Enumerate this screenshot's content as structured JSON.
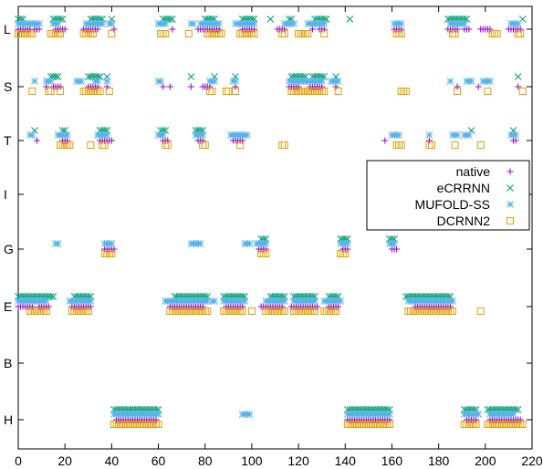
{
  "chart_data": {
    "type": "scatter",
    "title": "",
    "xlabel": "",
    "ylabel": "",
    "xlim": [
      0,
      220
    ],
    "x_ticks": [
      0,
      20,
      40,
      60,
      80,
      100,
      120,
      140,
      160,
      180,
      200,
      220
    ],
    "y_categories": [
      "L",
      "S",
      "T",
      "I",
      "G",
      "E",
      "B",
      "H"
    ],
    "grid": false,
    "legend_position": "right",
    "series": [
      {
        "name": "native",
        "marker": "plus",
        "color": "#9400d3",
        "segments": [
          {
            "y": "L",
            "ranges": [
              [
                0,
                5
              ],
              [
                7,
                9
              ],
              [
                16,
                20
              ],
              [
                28,
                34
              ],
              [
                41,
                41
              ],
              [
                66,
                66
              ],
              [
                77,
                86
              ],
              [
                96,
                101
              ],
              [
                111,
                114
              ],
              [
                126,
                126
              ],
              [
                129,
                131
              ],
              [
                161,
                164
              ],
              [
                184,
                188
              ],
              [
                191,
                193
              ],
              [
                198,
                202
              ],
              [
                210,
                215
              ]
            ]
          },
          {
            "y": "S",
            "ranges": [
              [
                12,
                12
              ],
              [
                15,
                18
              ],
              [
                30,
                34
              ],
              [
                38,
                38
              ],
              [
                62,
                62
              ],
              [
                65,
                65
              ],
              [
                74,
                74
              ],
              [
                79,
                82
              ],
              [
                93,
                93
              ],
              [
                116,
                120
              ],
              [
                125,
                130
              ],
              [
                136,
                136
              ],
              [
                188,
                188
              ],
              [
                197,
                197
              ],
              [
                214,
                214
              ]
            ]
          },
          {
            "y": "T",
            "ranges": [
              [
                8,
                8
              ],
              [
                19,
                21
              ],
              [
                35,
                40
              ],
              [
                62,
                64
              ],
              [
                77,
                79
              ],
              [
                92,
                96
              ],
              [
                157,
                157
              ],
              [
                176,
                176
              ],
              [
                212,
                213
              ]
            ]
          },
          {
            "y": "G",
            "ranges": [
              [
                37,
                41
              ],
              [
                103,
                106
              ],
              [
                139,
                141
              ],
              [
                160,
                162
              ]
            ]
          },
          {
            "y": "E",
            "ranges": [
              [
                0,
                6
              ],
              [
                9,
                13
              ],
              [
                23,
                31
              ],
              [
                65,
                79
              ],
              [
                89,
                96
              ],
              [
                104,
                113
              ],
              [
                117,
                128
              ],
              [
                133,
                137
              ],
              [
                170,
                185
              ]
            ]
          },
          {
            "y": "H",
            "ranges": [
              [
                42,
                59
              ],
              [
                141,
                159
              ],
              [
                192,
                196
              ],
              [
                202,
                215
              ]
            ]
          }
        ]
      },
      {
        "name": "eCRRNN",
        "marker": "cross",
        "color": "#009e73",
        "segments": [
          {
            "y": "L",
            "ranges": [
              [
                0,
                2
              ],
              [
                15,
                19
              ],
              [
                31,
                36
              ],
              [
                40,
                40
              ],
              [
                62,
                66
              ],
              [
                80,
                84
              ],
              [
                96,
                101
              ],
              [
                108,
                108
              ],
              [
                116,
                117
              ],
              [
                127,
                132
              ],
              [
                142,
                142
              ],
              [
                184,
                192
              ],
              [
                216,
                216
              ]
            ]
          },
          {
            "y": "S",
            "ranges": [
              [
                14,
                17
              ],
              [
                30,
                35
              ],
              [
                38,
                38
              ],
              [
                74,
                74
              ],
              [
                84,
                84
              ],
              [
                93,
                93
              ],
              [
                117,
                123
              ],
              [
                126,
                131
              ],
              [
                136,
                136
              ],
              [
                214,
                214
              ]
            ]
          },
          {
            "y": "T",
            "ranges": [
              [
                7,
                7
              ],
              [
                19,
                20
              ],
              [
                35,
                38
              ],
              [
                61,
                63
              ],
              [
                76,
                79
              ],
              [
                194,
                194
              ],
              [
                212,
                212
              ]
            ]
          },
          {
            "y": "G",
            "ranges": [
              [
                104,
                106
              ],
              [
                138,
                141
              ],
              [
                159,
                161
              ]
            ]
          },
          {
            "y": "E",
            "ranges": [
              [
                0,
                15
              ],
              [
                24,
                31
              ],
              [
                67,
                81
              ],
              [
                88,
                97
              ],
              [
                108,
                114
              ],
              [
                118,
                127
              ],
              [
                133,
                137
              ],
              [
                166,
                185
              ]
            ]
          },
          {
            "y": "H",
            "ranges": [
              [
                41,
                60
              ],
              [
                141,
                159
              ],
              [
                191,
                196
              ],
              [
                201,
                214
              ]
            ]
          }
        ]
      },
      {
        "name": "MUFOLD-SS",
        "marker": "star",
        "color": "#56b4e9",
        "segments": [
          {
            "y": "L",
            "ranges": [
              [
                0,
                6
              ],
              [
                7,
                9
              ],
              [
                15,
                17
              ],
              [
                29,
                36
              ],
              [
                39,
                40
              ],
              [
                60,
                63
              ],
              [
                74,
                75
              ],
              [
                78,
                86
              ],
              [
                93,
                101
              ],
              [
                114,
                118
              ],
              [
                124,
                131
              ],
              [
                161,
                164
              ],
              [
                185,
                191
              ],
              [
                211,
                214
              ]
            ]
          },
          {
            "y": "S",
            "ranges": [
              [
                7,
                7
              ],
              [
                12,
                14
              ],
              [
                25,
                27
              ],
              [
                33,
                34
              ],
              [
                38,
                38
              ],
              [
                60,
                61
              ],
              [
                82,
                84
              ],
              [
                92,
                93
              ],
              [
                116,
                122
              ],
              [
                123,
                130
              ],
              [
                134,
                137
              ],
              [
                185,
                185
              ],
              [
                192,
                194
              ],
              [
                199,
                202
              ]
            ]
          },
          {
            "y": "T",
            "ranges": [
              [
                5,
                6
              ],
              [
                17,
                21
              ],
              [
                34,
                38
              ],
              [
                60,
                62
              ],
              [
                76,
                79
              ],
              [
                91,
                98
              ],
              [
                160,
                163
              ],
              [
                176,
                176
              ],
              [
                186,
                188
              ],
              [
                191,
                193
              ],
              [
                211,
                213
              ]
            ]
          },
          {
            "y": "G",
            "ranges": [
              [
                16,
                17
              ],
              [
                37,
                40
              ],
              [
                74,
                78
              ],
              [
                97,
                99
              ],
              [
                102,
                106
              ],
              [
                138,
                141
              ],
              [
                159,
                161
              ]
            ]
          },
          {
            "y": "E",
            "ranges": [
              [
                0,
                12
              ],
              [
                22,
                31
              ],
              [
                63,
                81
              ],
              [
                83,
                84
              ],
              [
                88,
                97
              ],
              [
                106,
                114
              ],
              [
                118,
                127
              ],
              [
                131,
                138
              ],
              [
                167,
                186
              ]
            ]
          },
          {
            "y": "H",
            "ranges": [
              [
                41,
                60
              ],
              [
                96,
                99
              ],
              [
                141,
                159
              ],
              [
                191,
                197
              ],
              [
                202,
                212
              ]
            ]
          }
        ]
      },
      {
        "name": "DCRNN2",
        "marker": "square",
        "color": "#e69f00",
        "segments": [
          {
            "y": "L",
            "ranges": [
              [
                0,
                6
              ],
              [
                14,
                18
              ],
              [
                28,
                32
              ],
              [
                40,
                40
              ],
              [
                61,
                63
              ],
              [
                73,
                73
              ],
              [
                81,
                87
              ],
              [
                95,
                101
              ],
              [
                113,
                114
              ],
              [
                120,
                124
              ],
              [
                131,
                131
              ],
              [
                162,
                164
              ],
              [
                186,
                187
              ],
              [
                203,
                205
              ],
              [
                214,
                215
              ]
            ]
          },
          {
            "y": "S",
            "ranges": [
              [
                6,
                6
              ],
              [
                13,
                14
              ],
              [
                18,
                18
              ],
              [
                28,
                35
              ],
              [
                39,
                39
              ],
              [
                82,
                83
              ],
              [
                89,
                90
              ],
              [
                93,
                93
              ],
              [
                117,
                131
              ],
              [
                137,
                137
              ],
              [
                164,
                166
              ],
              [
                188,
                188
              ],
              [
                201,
                201
              ],
              [
                216,
                216
              ]
            ]
          },
          {
            "y": "T",
            "ranges": [
              [
                18,
                22
              ],
              [
                31,
                31
              ],
              [
                36,
                37
              ],
              [
                63,
                64
              ],
              [
                79,
                80
              ],
              [
                95,
                95
              ],
              [
                113,
                114
              ],
              [
                162,
                164
              ],
              [
                176,
                177
              ],
              [
                187,
                187
              ],
              [
                198,
                198
              ]
            ]
          },
          {
            "y": "G",
            "ranges": [
              [
                37,
                40
              ],
              [
                104,
                106
              ],
              [
                138,
                140
              ]
            ]
          },
          {
            "y": "E",
            "ranges": [
              [
                5,
                12
              ],
              [
                23,
                30
              ],
              [
                65,
                81
              ],
              [
                88,
                96
              ],
              [
                100,
                100
              ],
              [
                106,
                114
              ],
              [
                118,
                127
              ],
              [
                131,
                136
              ],
              [
                167,
                186
              ],
              [
                198,
                198
              ]
            ]
          },
          {
            "y": "H",
            "ranges": [
              [
                41,
                60
              ],
              [
                141,
                159
              ],
              [
                191,
                196
              ],
              [
                201,
                216
              ]
            ]
          }
        ]
      }
    ]
  }
}
